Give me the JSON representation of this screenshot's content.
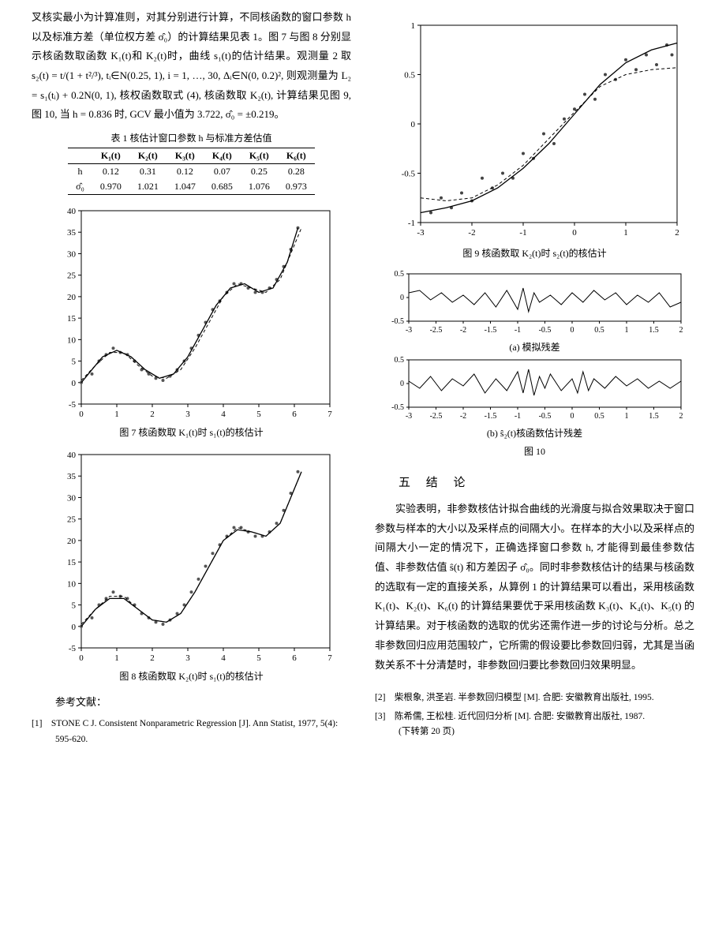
{
  "leftText": {
    "para": "叉核实最小为计算准则，对其分别进行计算，不同核函数的窗口参数 h 以及标准方差（单位权方差 σ̂₀）的计算结果见表 1。图 7 与图 8 分别显示核函数取函数 K₁(t)和 K₂(t)时，曲线 s₁(t)的估计结果。观测量 2 取 s₂(t) = t/(1 + t²/³), tᵢ∈N(0.25, 1), i = 1, …, 30, Δᵢ∈N(0, 0.2)², 则观测量为 L₂ = s₁(tᵢ) + 0.2N(0, 1), 核权函数取式 (4), 核函数取 K₂(t), 计算结果见图 9, 图 10, 当 h = 0.836 时, GCV 最小值为 3.722, σ̂₀ = ±0.219。"
  },
  "table1": {
    "title": "表 1  核估计窗口参数 h 与标准方差估值",
    "headers": [
      "",
      "K₁(t)",
      "K₂(t)",
      "K₃(t)",
      "K₄(t)",
      "K₅(t)",
      "K₆(t)"
    ],
    "rows": [
      [
        "h",
        "0.12",
        "0.31",
        "0.12",
        "0.07",
        "0.25",
        "0.28"
      ],
      [
        "σ̂₀",
        "0.970",
        "1.021",
        "1.047",
        "0.685",
        "1.076",
        "0.973"
      ]
    ]
  },
  "fig7": {
    "caption": "图 7  核函数取 K₁(t)时 s₁(t)的核估计",
    "xlim": [
      0,
      7
    ],
    "ylim": [
      -5,
      40
    ],
    "xticks": [
      0,
      1,
      2,
      3,
      4,
      5,
      6,
      7
    ],
    "yticks": [
      -5,
      0,
      5,
      10,
      15,
      20,
      25,
      30,
      35,
      40
    ],
    "curve_color": "#000",
    "point_color": "#555",
    "bg": "#fff",
    "line": [
      [
        0,
        0
      ],
      [
        0.3,
        3
      ],
      [
        0.6,
        6
      ],
      [
        1,
        7.5
      ],
      [
        1.4,
        6
      ],
      [
        1.8,
        3
      ],
      [
        2.2,
        1
      ],
      [
        2.6,
        2
      ],
      [
        3,
        6
      ],
      [
        3.4,
        12
      ],
      [
        3.8,
        18
      ],
      [
        4.2,
        22
      ],
      [
        4.6,
        23
      ],
      [
        5,
        21
      ],
      [
        5.4,
        22
      ],
      [
        5.8,
        28
      ],
      [
        6.1,
        36
      ]
    ],
    "dash": [
      [
        0,
        0.5
      ],
      [
        0.4,
        4
      ],
      [
        0.8,
        7
      ],
      [
        1.2,
        7
      ],
      [
        1.6,
        4
      ],
      [
        2,
        1.5
      ],
      [
        2.4,
        1
      ],
      [
        2.8,
        3
      ],
      [
        3.2,
        8
      ],
      [
        3.6,
        14
      ],
      [
        4,
        20
      ],
      [
        4.4,
        23
      ],
      [
        4.8,
        22
      ],
      [
        5.2,
        21
      ],
      [
        5.6,
        24
      ],
      [
        6,
        32
      ],
      [
        6.2,
        36
      ]
    ],
    "points": [
      [
        0,
        0
      ],
      [
        0.3,
        2
      ],
      [
        0.5,
        5
      ],
      [
        0.7,
        6.5
      ],
      [
        0.9,
        8
      ],
      [
        1.1,
        7
      ],
      [
        1.3,
        6.5
      ],
      [
        1.5,
        5
      ],
      [
        1.7,
        3
      ],
      [
        1.9,
        2
      ],
      [
        2.1,
        1
      ],
      [
        2.3,
        0.5
      ],
      [
        2.5,
        1.5
      ],
      [
        2.7,
        3
      ],
      [
        2.9,
        5
      ],
      [
        3.1,
        8
      ],
      [
        3.3,
        11
      ],
      [
        3.5,
        14
      ],
      [
        3.7,
        17
      ],
      [
        3.9,
        19
      ],
      [
        4.1,
        21
      ],
      [
        4.3,
        23
      ],
      [
        4.5,
        23
      ],
      [
        4.7,
        22
      ],
      [
        4.9,
        21
      ],
      [
        5.1,
        21
      ],
      [
        5.3,
        22
      ],
      [
        5.5,
        24
      ],
      [
        5.7,
        27
      ],
      [
        5.9,
        31
      ],
      [
        6.1,
        36
      ]
    ]
  },
  "fig8": {
    "caption": "图 8  核函数取 K₂(t)时 s₁(t)的核估计",
    "xlim": [
      0,
      7
    ],
    "ylim": [
      -5,
      40
    ],
    "xticks": [
      0,
      1,
      2,
      3,
      4,
      5,
      6,
      7
    ],
    "yticks": [
      -5,
      0,
      5,
      10,
      15,
      20,
      25,
      30,
      35,
      40
    ],
    "curve_color": "#000",
    "point_color": "#555",
    "bg": "#fff",
    "line": [
      [
        0,
        0
      ],
      [
        0.4,
        4
      ],
      [
        0.8,
        6.5
      ],
      [
        1.2,
        6.5
      ],
      [
        1.6,
        4
      ],
      [
        2,
        1.5
      ],
      [
        2.4,
        1
      ],
      [
        2.8,
        3
      ],
      [
        3.2,
        8
      ],
      [
        3.6,
        14
      ],
      [
        4,
        20
      ],
      [
        4.4,
        22.5
      ],
      [
        4.8,
        22
      ],
      [
        5.2,
        21
      ],
      [
        5.6,
        24
      ],
      [
        6,
        32
      ],
      [
        6.2,
        36
      ]
    ],
    "dash": [
      [
        0,
        0.5
      ],
      [
        0.4,
        4
      ],
      [
        0.8,
        7
      ],
      [
        1.2,
        7
      ],
      [
        1.6,
        4
      ],
      [
        2,
        1.5
      ],
      [
        2.4,
        1
      ],
      [
        2.8,
        3
      ],
      [
        3.2,
        8
      ],
      [
        3.6,
        14
      ],
      [
        4,
        20
      ],
      [
        4.4,
        23
      ],
      [
        4.8,
        22
      ],
      [
        5.2,
        21
      ],
      [
        5.6,
        24
      ],
      [
        6,
        32
      ],
      [
        6.2,
        36
      ]
    ],
    "points": [
      [
        0,
        0
      ],
      [
        0.3,
        2
      ],
      [
        0.5,
        5
      ],
      [
        0.7,
        6.5
      ],
      [
        0.9,
        8
      ],
      [
        1.1,
        7
      ],
      [
        1.3,
        6.5
      ],
      [
        1.5,
        5
      ],
      [
        1.7,
        3
      ],
      [
        1.9,
        2
      ],
      [
        2.1,
        1
      ],
      [
        2.3,
        0.5
      ],
      [
        2.5,
        1.5
      ],
      [
        2.7,
        3
      ],
      [
        2.9,
        5
      ],
      [
        3.1,
        8
      ],
      [
        3.3,
        11
      ],
      [
        3.5,
        14
      ],
      [
        3.7,
        17
      ],
      [
        3.9,
        19
      ],
      [
        4.1,
        21
      ],
      [
        4.3,
        23
      ],
      [
        4.5,
        23
      ],
      [
        4.7,
        22
      ],
      [
        4.9,
        21
      ],
      [
        5.1,
        21
      ],
      [
        5.3,
        22
      ],
      [
        5.5,
        24
      ],
      [
        5.7,
        27
      ],
      [
        5.9,
        31
      ],
      [
        6.1,
        36
      ]
    ]
  },
  "fig9": {
    "caption": "图 9  核函数取 K₂(t)时 s₂(t)的核估计",
    "xlim": [
      -3,
      2
    ],
    "ylim": [
      -1,
      1
    ],
    "xticks": [
      -3,
      -2,
      -1,
      0,
      1,
      2
    ],
    "yticks": [
      -1,
      -0.5,
      0,
      0.5,
      1
    ],
    "curve_color": "#000",
    "point_color": "#444",
    "bg": "#fff",
    "line": [
      [
        -3,
        -0.9
      ],
      [
        -2.5,
        -0.85
      ],
      [
        -2,
        -0.78
      ],
      [
        -1.5,
        -0.65
      ],
      [
        -1,
        -0.45
      ],
      [
        -0.5,
        -0.2
      ],
      [
        0,
        0.1
      ],
      [
        0.5,
        0.4
      ],
      [
        1,
        0.62
      ],
      [
        1.5,
        0.75
      ],
      [
        2,
        0.82
      ]
    ],
    "dash": [
      [
        -3,
        -0.75
      ],
      [
        -2.5,
        -0.78
      ],
      [
        -2,
        -0.75
      ],
      [
        -1.5,
        -0.62
      ],
      [
        -1,
        -0.42
      ],
      [
        -0.5,
        -0.15
      ],
      [
        0,
        0.12
      ],
      [
        0.5,
        0.38
      ],
      [
        1,
        0.5
      ],
      [
        1.5,
        0.55
      ],
      [
        2,
        0.57
      ]
    ],
    "points": [
      [
        -2.8,
        -0.9
      ],
      [
        -2.6,
        -0.75
      ],
      [
        -2.4,
        -0.85
      ],
      [
        -2.2,
        -0.7
      ],
      [
        -2,
        -0.78
      ],
      [
        -1.8,
        -0.55
      ],
      [
        -1.6,
        -0.65
      ],
      [
        -1.4,
        -0.5
      ],
      [
        -1.2,
        -0.55
      ],
      [
        -1,
        -0.3
      ],
      [
        -0.8,
        -0.35
      ],
      [
        -0.6,
        -0.1
      ],
      [
        -0.4,
        -0.2
      ],
      [
        -0.2,
        0.05
      ],
      [
        0,
        0.15
      ],
      [
        0.2,
        0.3
      ],
      [
        0.4,
        0.25
      ],
      [
        0.6,
        0.5
      ],
      [
        0.8,
        0.45
      ],
      [
        1,
        0.65
      ],
      [
        1.2,
        0.55
      ],
      [
        1.4,
        0.7
      ],
      [
        1.6,
        0.6
      ],
      [
        1.8,
        0.8
      ],
      [
        1.9,
        0.7
      ]
    ]
  },
  "fig10": {
    "caption_a": "(a) 模拟残差",
    "caption_b": "(b) ŝ₂(t)核函数估计残差",
    "caption": "图 10",
    "xlim": [
      -3,
      2
    ],
    "ylim": [
      -0.5,
      0.5
    ],
    "xticks": [
      -3,
      -2.5,
      -2,
      -1.5,
      -1,
      -0.5,
      0,
      0.5,
      1,
      1.5,
      2
    ],
    "yticks": [
      -0.5,
      0,
      0.5
    ],
    "line_color": "#000",
    "series_a": [
      [
        -3,
        0.1
      ],
      [
        -2.8,
        0.15
      ],
      [
        -2.6,
        -0.05
      ],
      [
        -2.4,
        0.1
      ],
      [
        -2.2,
        -0.1
      ],
      [
        -2,
        0.05
      ],
      [
        -1.8,
        -0.15
      ],
      [
        -1.6,
        0.1
      ],
      [
        -1.4,
        -0.2
      ],
      [
        -1.2,
        0.15
      ],
      [
        -1,
        -0.25
      ],
      [
        -0.9,
        0.2
      ],
      [
        -0.8,
        -0.3
      ],
      [
        -0.7,
        0.1
      ],
      [
        -0.6,
        -0.1
      ],
      [
        -0.4,
        0.05
      ],
      [
        -0.2,
        -0.15
      ],
      [
        0,
        0.1
      ],
      [
        0.2,
        -0.1
      ],
      [
        0.4,
        0.15
      ],
      [
        0.6,
        -0.05
      ],
      [
        0.8,
        0.1
      ],
      [
        1,
        -0.15
      ],
      [
        1.2,
        0.05
      ],
      [
        1.4,
        -0.1
      ],
      [
        1.6,
        0.1
      ],
      [
        1.8,
        -0.2
      ],
      [
        2,
        -0.1
      ]
    ],
    "series_b": [
      [
        -3,
        0.05
      ],
      [
        -2.8,
        -0.1
      ],
      [
        -2.6,
        0.15
      ],
      [
        -2.4,
        -0.15
      ],
      [
        -2.2,
        0.1
      ],
      [
        -2,
        -0.05
      ],
      [
        -1.8,
        0.2
      ],
      [
        -1.6,
        -0.2
      ],
      [
        -1.4,
        0.1
      ],
      [
        -1.2,
        -0.15
      ],
      [
        -1,
        0.25
      ],
      [
        -0.9,
        -0.2
      ],
      [
        -0.8,
        0.3
      ],
      [
        -0.7,
        -0.25
      ],
      [
        -0.6,
        0.15
      ],
      [
        -0.5,
        -0.1
      ],
      [
        -0.4,
        0.2
      ],
      [
        -0.2,
        -0.15
      ],
      [
        0,
        0.1
      ],
      [
        0.1,
        -0.2
      ],
      [
        0.2,
        0.25
      ],
      [
        0.3,
        -0.15
      ],
      [
        0.4,
        0.1
      ],
      [
        0.6,
        -0.1
      ],
      [
        0.8,
        0.15
      ],
      [
        1,
        -0.05
      ],
      [
        1.2,
        0.1
      ],
      [
        1.4,
        -0.1
      ],
      [
        1.6,
        0.05
      ],
      [
        1.8,
        -0.1
      ],
      [
        2,
        0.05
      ]
    ]
  },
  "section5": {
    "title": "五 结  论",
    "body": "实验表明，非参数核估计拟合曲线的光滑度与拟合效果取决于窗口参数与样本的大小以及采样点的间隔大小。在样本的大小以及采样点的间隔大小一定的情况下，正确选择窗口参数 h, 才能得到最佳参数估值、非参数估值 ŝ(t) 和方差因子 σ̂₀。同时非参数核估计的结果与核函数的选取有一定的直接关系，从算例 1 的计算结果可以看出，采用核函数 K₁(t)、K₂(t)、K₆(t) 的计算结果要优于采用核函数 K₃(t)、K₄(t)、K₅(t) 的计算结果。对于核函数的选取的优劣还需作进一步的讨论与分析。总之非参数回归应用范围较广，它所需的假设要比参数回归弱，尤其是当函数关系不十分清楚时，非参数回归要比参数回归效果明显。"
  },
  "refs": {
    "title": "参考文献：",
    "items": [
      "[1]　STONE C J. Consistent Nonparametric Regression [J]. Ann Statist, 1977, 5(4): 595-620.",
      "[2]　柴根象, 洪圣岩. 半参数回归模型 [M]. 合肥: 安徽教育出版社, 1995.",
      "[3]　陈希儒, 王松桂. 近代回归分析 [M]. 合肥: 安徽教育出版社, 1987.　　　　　　(下转第 20 页)"
    ]
  }
}
